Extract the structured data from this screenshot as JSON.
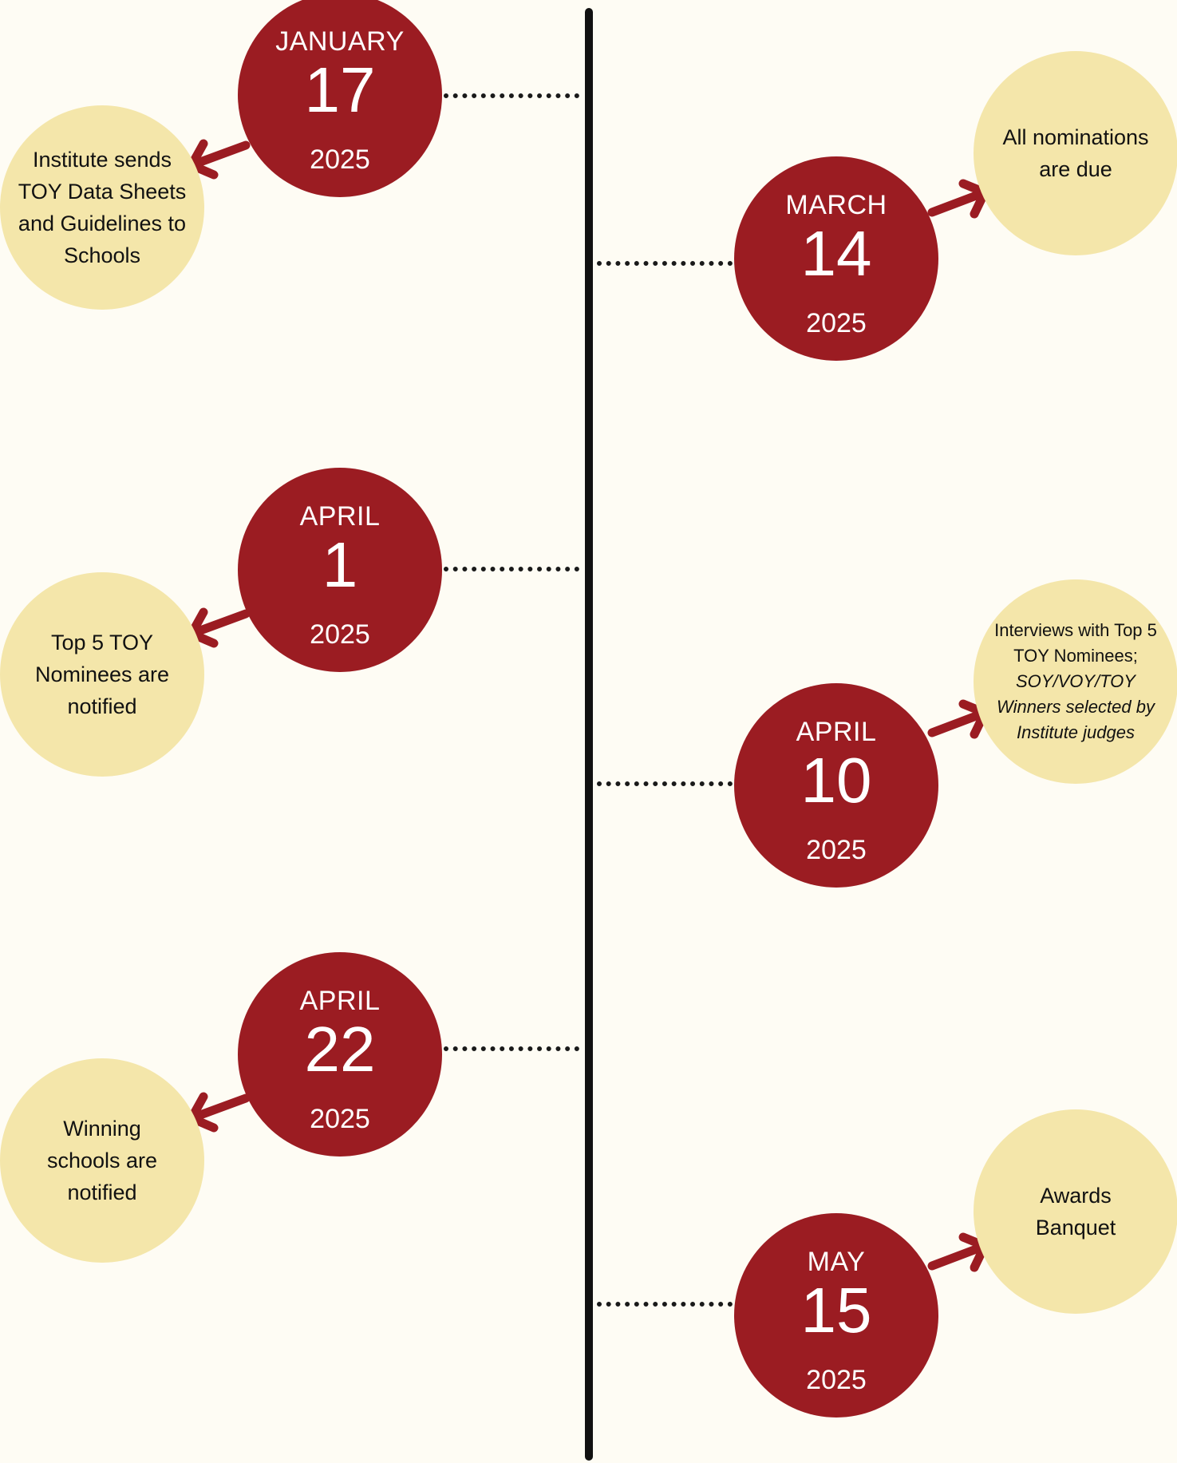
{
  "colors": {
    "background": "#fefcf4",
    "date_circle": "#9b1c22",
    "note_circle": "#f4e6aa",
    "arrow": "#9b1c22",
    "spine": "#111111"
  },
  "events": [
    {
      "month": "JANUARY",
      "day": "17",
      "year": "2025",
      "description": "Institute sends TOY Data Sheets and Guidelines to Schools"
    },
    {
      "month": "MARCH",
      "day": "14",
      "year": "2025",
      "description": "All nominations are due"
    },
    {
      "month": "APRIL",
      "day": "1",
      "year": "2025",
      "description": "Top 5 TOY Nominees are notified"
    },
    {
      "month": "APRIL",
      "day": "10",
      "year": "2025",
      "description": "Interviews with Top 5 TOY Nominees;",
      "description_italic": "SOY/VOY/TOY Winners selected by Institute judges"
    },
    {
      "month": "APRIL",
      "day": "22",
      "year": "2025",
      "description": "Winning schools are notified"
    },
    {
      "month": "MAY",
      "day": "15",
      "year": "2025",
      "description": "Awards Banquet"
    }
  ]
}
